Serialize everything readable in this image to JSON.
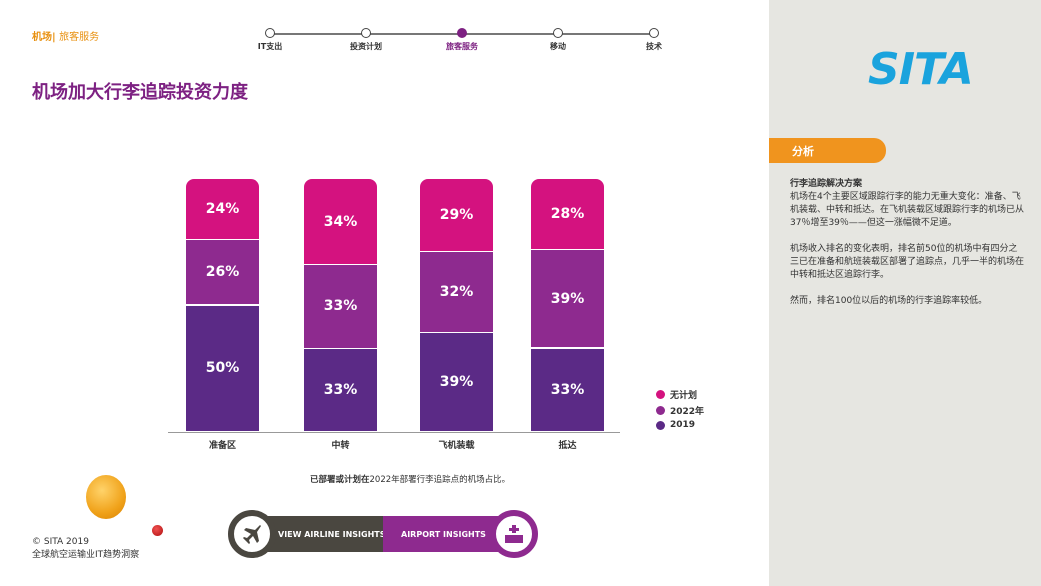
{
  "breadcrumb": {
    "section": "机场",
    "separator": "|",
    "page": "旅客服务"
  },
  "steps": [
    {
      "label": "IT支出",
      "active": false
    },
    {
      "label": "投资计划",
      "active": false
    },
    {
      "label": "旅客服务",
      "active": true
    },
    {
      "label": "移动",
      "active": false
    },
    {
      "label": "技术",
      "active": false
    }
  ],
  "title": "机场加大行李追踪投资力度",
  "logo": "SITA",
  "sidebar": {
    "tab": "分析",
    "heading": "行李追踪解决方案",
    "paragraphs": [
      "机场在4个主要区域跟踪行李的能力无重大变化：准备、飞机装载、中转和抵达。在飞机装载区域跟踪行李的机场已从37％增至39％——但这一涨幅微不足道。",
      "机场收入排名的变化表明，排名前50位的机场中有四分之三已在准备和航班装载区部署了追踪点，几乎一半的机场在中转和抵达区追踪行李。",
      "然而，排名100位以后的机场的行李追踪率较低。"
    ]
  },
  "chart_data": {
    "type": "bar",
    "stacked": true,
    "categories": [
      "准备区",
      "中转",
      "飞机装载",
      "抵达"
    ],
    "series": [
      {
        "name": "2019",
        "color": "#5b2a86",
        "values": [
          50,
          33,
          39,
          33
        ],
        "labels": [
          "50%",
          "33%",
          "39%",
          "33%"
        ]
      },
      {
        "name": "2022年",
        "color": "#8e2a8f",
        "values": [
          26,
          33,
          32,
          39
        ],
        "labels": [
          "26%",
          "33%",
          "32%",
          "39%"
        ]
      },
      {
        "name": "无计划",
        "color": "#d4127f",
        "values": [
          24,
          34,
          29,
          28
        ],
        "labels": [
          "24%",
          "34%",
          "29%",
          "28%"
        ]
      }
    ],
    "legend_order": [
      "无计划",
      "2022年",
      "2019"
    ],
    "legend_position": "right",
    "ylim": [
      0,
      100
    ]
  },
  "note": {
    "bold": "已部署或计划在",
    "rest": "2022年部署行李追踪点的机场占比。"
  },
  "footer": {
    "copyright": "© SITA 2019",
    "subtitle": "全球航空运输业IT趋势洞察"
  },
  "nav": {
    "airline": "VIEW AIRLINE INSIGHTS",
    "airport": "AIRPORT INSIGHTS"
  }
}
